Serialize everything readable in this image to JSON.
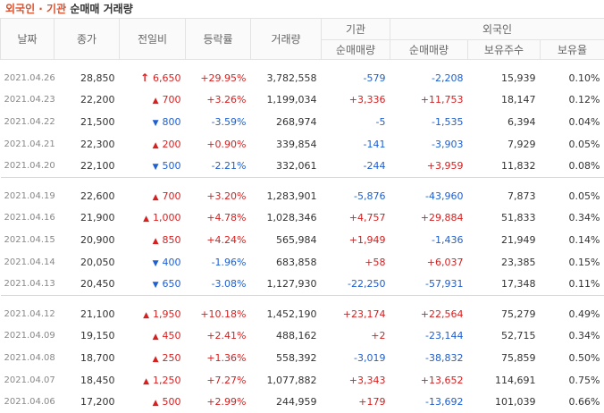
{
  "title": {
    "part1": "외국인",
    "dot": " · ",
    "part2": "기관",
    "part3": " 순매매 거래량"
  },
  "headers": {
    "date": "날짜",
    "close": "종가",
    "change": "전일비",
    "rate": "등락률",
    "volume": "거래량",
    "inst": "기관",
    "inst_net": "순매매량",
    "foreign": "외국인",
    "foreign_net": "순매매량",
    "holding": "보유주수",
    "ratio": "보유율"
  },
  "groups": [
    [
      {
        "date": "2021.04.26",
        "close": "28,850",
        "dir": "limit-up",
        "change": "6,650",
        "rate": "+29.95%",
        "volume": "3,782,558",
        "inst": "-579",
        "foreign": "-2,208",
        "holding": "15,939",
        "ratio": "0.10%"
      },
      {
        "date": "2021.04.23",
        "close": "22,200",
        "dir": "up",
        "change": "700",
        "rate": "+3.26%",
        "volume": "1,199,034",
        "inst": "+3,336",
        "foreign": "+11,753",
        "holding": "18,147",
        "ratio": "0.12%"
      },
      {
        "date": "2021.04.22",
        "close": "21,500",
        "dir": "down",
        "change": "800",
        "rate": "-3.59%",
        "volume": "268,974",
        "inst": "-5",
        "foreign": "-1,535",
        "holding": "6,394",
        "ratio": "0.04%"
      },
      {
        "date": "2021.04.21",
        "close": "22,300",
        "dir": "up",
        "change": "200",
        "rate": "+0.90%",
        "volume": "339,854",
        "inst": "-141",
        "foreign": "-3,903",
        "holding": "7,929",
        "ratio": "0.05%"
      },
      {
        "date": "2021.04.20",
        "close": "22,100",
        "dir": "down",
        "change": "500",
        "rate": "-2.21%",
        "volume": "332,061",
        "inst": "-244",
        "foreign": "+3,959",
        "holding": "11,832",
        "ratio": "0.08%"
      }
    ],
    [
      {
        "date": "2021.04.19",
        "close": "22,600",
        "dir": "up",
        "change": "700",
        "rate": "+3.20%",
        "volume": "1,283,901",
        "inst": "-5,876",
        "foreign": "-43,960",
        "holding": "7,873",
        "ratio": "0.05%"
      },
      {
        "date": "2021.04.16",
        "close": "21,900",
        "dir": "up",
        "change": "1,000",
        "rate": "+4.78%",
        "volume": "1,028,346",
        "inst": "+4,757",
        "foreign": "+29,884",
        "holding": "51,833",
        "ratio": "0.34%"
      },
      {
        "date": "2021.04.15",
        "close": "20,900",
        "dir": "up",
        "change": "850",
        "rate": "+4.24%",
        "volume": "565,984",
        "inst": "+1,949",
        "foreign": "-1,436",
        "holding": "21,949",
        "ratio": "0.14%"
      },
      {
        "date": "2021.04.14",
        "close": "20,050",
        "dir": "down",
        "change": "400",
        "rate": "-1.96%",
        "volume": "683,858",
        "inst": "+58",
        "foreign": "+6,037",
        "holding": "23,385",
        "ratio": "0.15%"
      },
      {
        "date": "2021.04.13",
        "close": "20,450",
        "dir": "down",
        "change": "650",
        "rate": "-3.08%",
        "volume": "1,127,930",
        "inst": "-22,250",
        "foreign": "-57,931",
        "holding": "17,348",
        "ratio": "0.11%"
      }
    ],
    [
      {
        "date": "2021.04.12",
        "close": "21,100",
        "dir": "up",
        "change": "1,950",
        "rate": "+10.18%",
        "volume": "1,452,190",
        "inst": "+23,174",
        "foreign": "+22,564",
        "holding": "75,279",
        "ratio": "0.49%"
      },
      {
        "date": "2021.04.09",
        "close": "19,150",
        "dir": "up",
        "change": "450",
        "rate": "+2.41%",
        "volume": "488,162",
        "inst": "+2",
        "foreign": "-23,144",
        "holding": "52,715",
        "ratio": "0.34%"
      },
      {
        "date": "2021.04.08",
        "close": "18,700",
        "dir": "up",
        "change": "250",
        "rate": "+1.36%",
        "volume": "558,392",
        "inst": "-3,019",
        "foreign": "-38,832",
        "holding": "75,859",
        "ratio": "0.50%"
      },
      {
        "date": "2021.04.07",
        "close": "18,450",
        "dir": "up",
        "change": "1,250",
        "rate": "+7.27%",
        "volume": "1,077,882",
        "inst": "+3,343",
        "foreign": "+13,652",
        "holding": "114,691",
        "ratio": "0.75%"
      },
      {
        "date": "2021.04.06",
        "close": "17,200",
        "dir": "up",
        "change": "500",
        "rate": "+2.99%",
        "volume": "244,959",
        "inst": "+179",
        "foreign": "-13,692",
        "holding": "101,039",
        "ratio": "0.66%"
      }
    ]
  ],
  "colors": {
    "up": "#d61f1f",
    "down": "#1f5fd1",
    "title_accent": "#e0502c"
  }
}
